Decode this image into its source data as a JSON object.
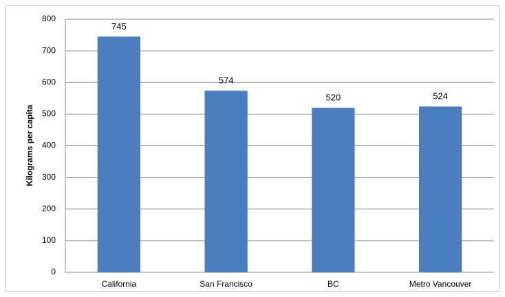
{
  "chart_data": {
    "type": "bar",
    "y_label": "Kilograms per capita",
    "categories": [
      "California",
      "San Francisco",
      "BC",
      "Metro Vancouver"
    ],
    "values": [
      745,
      574,
      520,
      524
    ],
    "color": "#4a7ebf",
    "ylim": [
      0,
      800
    ],
    "yticks": [
      0,
      100,
      200,
      300,
      400,
      500,
      600,
      700,
      800
    ],
    "grid": true
  }
}
